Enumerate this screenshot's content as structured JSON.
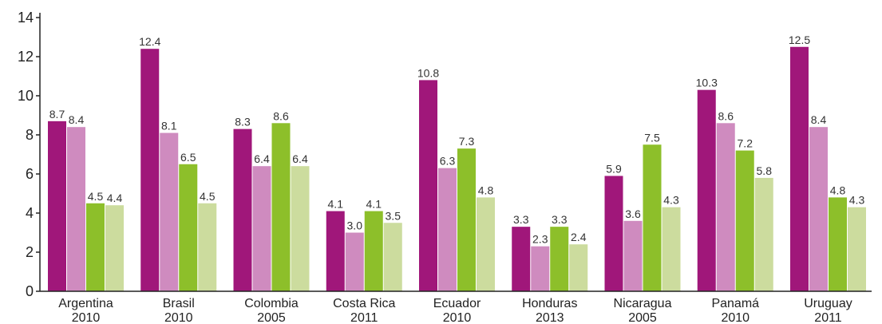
{
  "chart_data": {
    "type": "bar",
    "title": "",
    "xlabel": "",
    "ylabel": "",
    "ylim": [
      0,
      14
    ],
    "yticks": [
      0,
      2,
      4,
      6,
      8,
      10,
      12,
      14
    ],
    "grid": false,
    "legend": "none",
    "categories": [
      {
        "name": "Argentina",
        "year": "2010"
      },
      {
        "name": "Brasil",
        "year": "2010"
      },
      {
        "name": "Colombia",
        "year": "2005"
      },
      {
        "name": "Costa Rica",
        "year": "2011"
      },
      {
        "name": "Ecuador",
        "year": "2010"
      },
      {
        "name": "Honduras",
        "year": "2013"
      },
      {
        "name": "Nicaragua",
        "year": "2005"
      },
      {
        "name": "Panamá",
        "year": "2010"
      },
      {
        "name": "Uruguay",
        "year": "2011"
      }
    ],
    "series": [
      {
        "color": "#a0177a",
        "values": [
          8.7,
          12.4,
          8.3,
          4.1,
          10.8,
          3.3,
          5.9,
          10.3,
          12.5
        ],
        "labels": [
          "8.7",
          "12.4",
          "8.3",
          "4.1",
          "10.8",
          "3.3",
          "5.9",
          "10.3",
          "12.5"
        ]
      },
      {
        "color": "#cf8bbf",
        "values": [
          8.4,
          8.1,
          6.4,
          3.0,
          6.3,
          2.3,
          3.6,
          8.6,
          8.4
        ],
        "labels": [
          "8.4",
          "8.1",
          "6.4",
          "3.0",
          "6.3",
          "2.3",
          "3.6",
          "8.6",
          "8.4"
        ]
      },
      {
        "color": "#8dbf2a",
        "values": [
          4.5,
          6.5,
          8.6,
          4.1,
          7.3,
          3.3,
          7.5,
          7.2,
          4.8
        ],
        "labels": [
          "4.5",
          "6.5",
          "8.6",
          "4.1",
          "7.3",
          "3.3",
          "7.5",
          "7.2",
          "4.8"
        ]
      },
      {
        "color": "#ccdc9e",
        "values": [
          4.4,
          4.5,
          6.4,
          3.5,
          4.8,
          2.4,
          4.3,
          5.8,
          4.3
        ],
        "labels": [
          "4.4",
          "4.5",
          "6.4",
          "3.5",
          "4.8",
          "2.4",
          "4.3",
          "5.8",
          "4.3"
        ]
      }
    ]
  }
}
